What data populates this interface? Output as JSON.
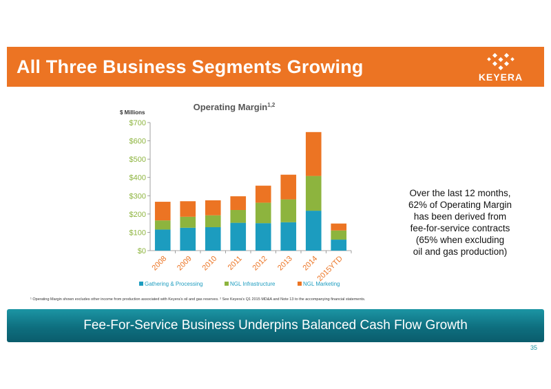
{
  "header": {
    "title": "All Three Business Segments Growing",
    "logo_text": "KEYERA"
  },
  "chart_data": {
    "type": "bar",
    "stacked": true,
    "title": "Operating Margin",
    "title_superscript": "1,2",
    "ylabel": "$ Millions",
    "categories": [
      "2008",
      "2009",
      "2010",
      "2011",
      "2012",
      "2013",
      "2014",
      "2015YTD"
    ],
    "ylim": [
      0,
      700
    ],
    "yticks": [
      "$0",
      "$100",
      "$200",
      "$300",
      "$400",
      "$500",
      "$600",
      "$700"
    ],
    "legend_position": "bottom",
    "series": [
      {
        "name": "Gathering & Processing",
        "color": "#1c9cbf",
        "values": [
          115,
          125,
          128,
          152,
          150,
          155,
          218,
          60
        ]
      },
      {
        "name": "NGL Infrastructure",
        "color": "#8db43e",
        "values": [
          50,
          60,
          65,
          70,
          112,
          125,
          190,
          50
        ]
      },
      {
        "name": "NGL Marketing",
        "color": "#ec7423",
        "values": [
          102,
          85,
          82,
          75,
          93,
          135,
          240,
          38
        ]
      }
    ]
  },
  "side_note": {
    "lines": [
      "Over the last 12 months,",
      "62% of Operating Margin",
      "has been derived from",
      "fee-for-service contracts",
      "(65% when excluding",
      "oil and gas production)"
    ]
  },
  "footnote": "¹ Operating Margin shown excludes other income from production associated with Keyera's oil and gas reserves.  ² See Keyera's Q1 2015 MD&A and Note 13 to the accompanying financial statements.",
  "banner": {
    "text": "Fee-For-Service Business Underpins Balanced Cash Flow Growth"
  },
  "page_number": "35"
}
